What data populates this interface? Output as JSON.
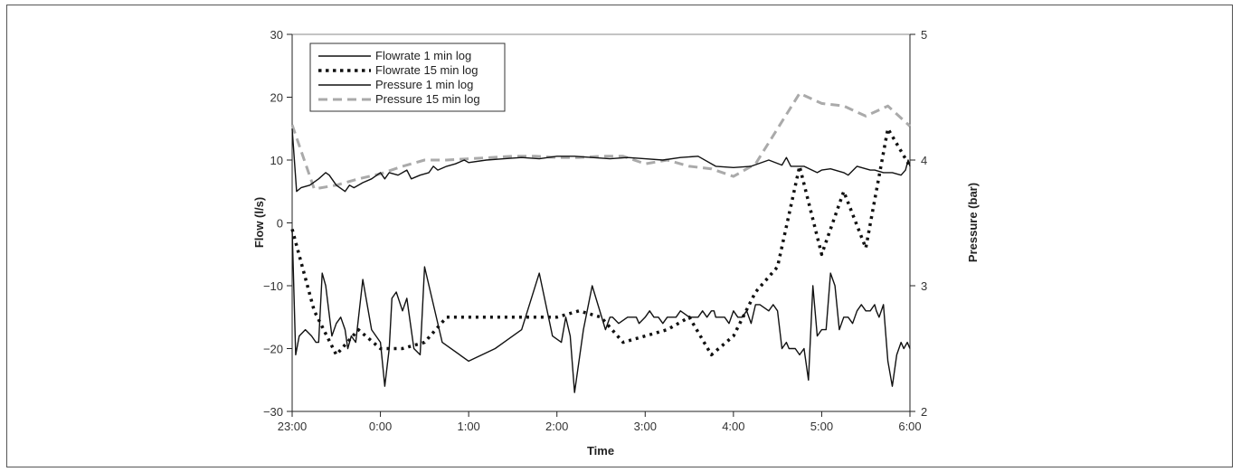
{
  "chart_data": {
    "type": "line",
    "title": "",
    "xlabel": "Time",
    "ylabel": "Flow (l/s)",
    "y2label": "Pressure (bar)",
    "x_ticks": [
      "23:00",
      "0:00",
      "1:00",
      "2:00",
      "3:00",
      "4:00",
      "5:00",
      "6:00"
    ],
    "xlim": [
      0,
      7
    ],
    "ylim": [
      -30,
      30
    ],
    "y_ticks": [
      -30,
      -20,
      -10,
      0,
      10,
      20,
      30
    ],
    "y2lim": [
      2,
      5
    ],
    "y2_ticks": [
      2,
      3,
      4,
      5
    ],
    "legend_position": "top-left",
    "grid": false,
    "series": [
      {
        "name": "Flowrate 1 min log",
        "axis": "left",
        "style": "solid",
        "color": "#111111",
        "x": [
          0,
          0.04,
          0.08,
          0.15,
          0.22,
          0.27,
          0.3,
          0.34,
          0.38,
          0.45,
          0.5,
          0.55,
          0.6,
          0.63,
          0.67,
          0.72,
          0.8,
          0.9,
          1.0,
          1.05,
          1.1,
          1.13,
          1.18,
          1.25,
          1.3,
          1.38,
          1.45,
          1.5,
          1.7,
          2.0,
          2.3,
          2.5,
          2.6,
          2.8,
          2.95,
          3.05,
          3.1,
          3.15,
          3.2,
          3.3,
          3.4,
          3.55,
          3.6,
          3.63,
          3.7,
          3.8,
          3.9,
          3.93,
          4.0,
          4.05,
          4.1,
          4.15,
          4.2,
          4.25,
          4.3,
          4.35,
          4.4,
          4.5,
          4.6,
          4.65,
          4.7,
          4.75,
          4.78,
          4.8,
          4.9,
          4.95,
          5.0,
          5.05,
          5.1,
          5.15,
          5.2,
          5.25,
          5.3,
          5.4,
          5.45,
          5.5,
          5.55,
          5.6,
          5.63,
          5.7,
          5.75,
          5.8,
          5.85,
          5.9,
          5.95,
          6.0,
          6.05,
          6.1,
          6.15,
          6.2,
          6.25,
          6.3,
          6.35,
          6.4,
          6.45,
          6.5,
          6.55,
          6.6,
          6.62,
          6.65,
          6.7,
          6.75,
          6.8,
          6.85,
          6.9,
          6.93,
          6.97,
          7.0
        ],
        "y": [
          -1,
          -21,
          -18,
          -17,
          -18,
          -19,
          -19,
          -8,
          -10,
          -18,
          -16,
          -15,
          -17,
          -20,
          -18,
          -19,
          -9,
          -17,
          -19,
          -26,
          -20,
          -12,
          -11,
          -14,
          -12,
          -20,
          -21,
          -7,
          -19,
          -22,
          -20,
          -18,
          -17,
          -8,
          -18,
          -19,
          -15,
          -18,
          -27,
          -17,
          -10,
          -17,
          -15,
          -15,
          -16,
          -15,
          -15,
          -16,
          -15,
          -14,
          -15,
          -15,
          -16,
          -15,
          -15,
          -15,
          -14,
          -15,
          -15,
          -14,
          -15,
          -14,
          -14,
          -15,
          -15,
          -16,
          -14,
          -15,
          -15,
          -14,
          -16,
          -13,
          -13,
          -14,
          -13,
          -14,
          -20,
          -19,
          -20,
          -20,
          -21,
          -20,
          -25,
          -10,
          -18,
          -17,
          -17,
          -8,
          -10,
          -17,
          -15,
          -15,
          -16,
          -14,
          -13,
          -14,
          -14,
          -13,
          -14,
          -15,
          -13,
          -22,
          -26,
          -21,
          -19,
          -20,
          -19,
          -20
        ],
        "x_extra": [
          4.55,
          4.6,
          4.62,
          4.67,
          4.72,
          4.8,
          4.85,
          4.9,
          4.95,
          5.0,
          5.05,
          5.1,
          5.15,
          5.2,
          5.25,
          5.3,
          5.35,
          5.4,
          5.5,
          5.55,
          5.6,
          5.65,
          5.7,
          5.75,
          5.8,
          5.85,
          5.9,
          5.95,
          6.0,
          6.05,
          6.1,
          6.15,
          6.2,
          6.25,
          6.3,
          6.35,
          6.4,
          6.45,
          6.5,
          6.55,
          6.6,
          6.65,
          6.7,
          6.75,
          6.8,
          6.85,
          6.9,
          6.95,
          7.0
        ]
      },
      {
        "name": "Flowrate 15 min log",
        "axis": "left",
        "style": "dotted",
        "color": "#111111",
        "x": [
          0,
          0.25,
          0.5,
          0.75,
          1.0,
          1.25,
          1.5,
          1.75,
          2.0,
          2.25,
          2.5,
          2.75,
          3.0,
          3.25,
          3.5,
          3.75,
          4.0,
          4.25,
          4.5,
          4.75,
          5.0,
          5.25,
          5.5,
          5.75,
          6.0,
          6.25,
          6.5,
          6.75,
          7.0
        ],
        "y": [
          -1,
          -14,
          -21,
          -17,
          -20,
          -20,
          -19,
          -15,
          -15,
          -15,
          -15,
          -15,
          -15,
          -14,
          -15,
          -19,
          -18,
          -17,
          -15,
          -21,
          -18,
          -11,
          -7,
          9,
          -5,
          5,
          -4,
          15,
          9
        ]
      },
      {
        "name": "Pressure 1 min log",
        "axis": "right",
        "style": "solid",
        "color": "#111111",
        "x": [
          0,
          0.05,
          0.1,
          0.2,
          0.3,
          0.38,
          0.42,
          0.5,
          0.6,
          0.65,
          0.7,
          0.8,
          0.9,
          1.0,
          1.05,
          1.1,
          1.2,
          1.3,
          1.35,
          1.45,
          1.55,
          1.6,
          1.65,
          1.75,
          1.85,
          1.95,
          2.0,
          2.2,
          2.4,
          2.6,
          2.8,
          3.0,
          3.2,
          3.4,
          3.6,
          3.8,
          4.0,
          4.2,
          4.4,
          4.6,
          4.8,
          5.0,
          5.2,
          5.4,
          5.55,
          5.6,
          5.65,
          5.8,
          5.95,
          6.0,
          6.1,
          6.25,
          6.3,
          6.4,
          6.55,
          6.6,
          6.7,
          6.8,
          6.9,
          6.95,
          6.98,
          7.0
        ],
        "y": [
          4.25,
          3.75,
          3.78,
          3.8,
          3.85,
          3.9,
          3.88,
          3.8,
          3.75,
          3.8,
          3.78,
          3.82,
          3.85,
          3.9,
          3.85,
          3.9,
          3.88,
          3.92,
          3.85,
          3.88,
          3.9,
          3.95,
          3.92,
          3.95,
          3.97,
          4.0,
          3.98,
          4.0,
          4.01,
          4.02,
          4.01,
          4.03,
          4.03,
          4.02,
          4.01,
          4.02,
          4.01,
          4.0,
          4.02,
          4.03,
          3.95,
          3.94,
          3.95,
          4.0,
          3.96,
          4.02,
          3.95,
          3.95,
          3.9,
          3.92,
          3.93,
          3.9,
          3.88,
          3.95,
          3.92,
          3.92,
          3.9,
          3.9,
          3.88,
          3.92,
          4.0,
          3.95
        ]
      },
      {
        "name": "Pressure 15 min log",
        "axis": "right",
        "style": "dashed",
        "color": "#aaaaaa",
        "x": [
          0,
          0.25,
          0.5,
          0.75,
          1.0,
          1.25,
          1.5,
          1.75,
          2.0,
          2.25,
          2.5,
          2.75,
          3.0,
          3.25,
          3.5,
          3.75,
          4.0,
          4.25,
          4.5,
          4.75,
          5.0,
          5.25,
          5.5,
          5.75,
          6.0,
          6.25,
          6.5,
          6.75,
          7.0
        ],
        "y": [
          4.28,
          3.77,
          3.8,
          3.85,
          3.89,
          3.95,
          4.0,
          4.0,
          4.01,
          4.02,
          4.03,
          4.03,
          4.02,
          4.02,
          4.03,
          4.03,
          3.97,
          4.0,
          3.95,
          3.93,
          3.87,
          3.97,
          4.25,
          4.53,
          4.45,
          4.43,
          4.35,
          4.43,
          4.27
        ]
      }
    ]
  }
}
